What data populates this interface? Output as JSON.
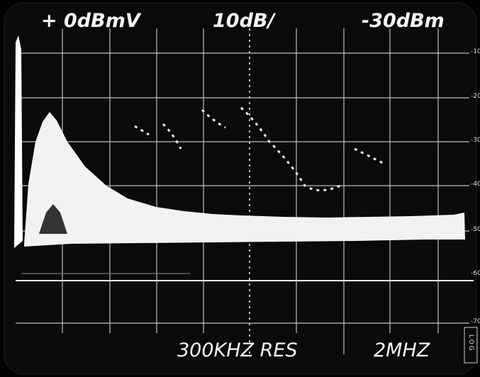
{
  "header": {
    "reference_level": "+ 0dBmV",
    "scale": "10dB/",
    "center_level": "-30dBm"
  },
  "footer": {
    "resolution": "300KHZ RES",
    "span": "2MHZ",
    "mode": "LOG"
  },
  "scale_labels": [
    "-10",
    "-20",
    "-30",
    "-40",
    "-50",
    "-60",
    "-70"
  ]
}
